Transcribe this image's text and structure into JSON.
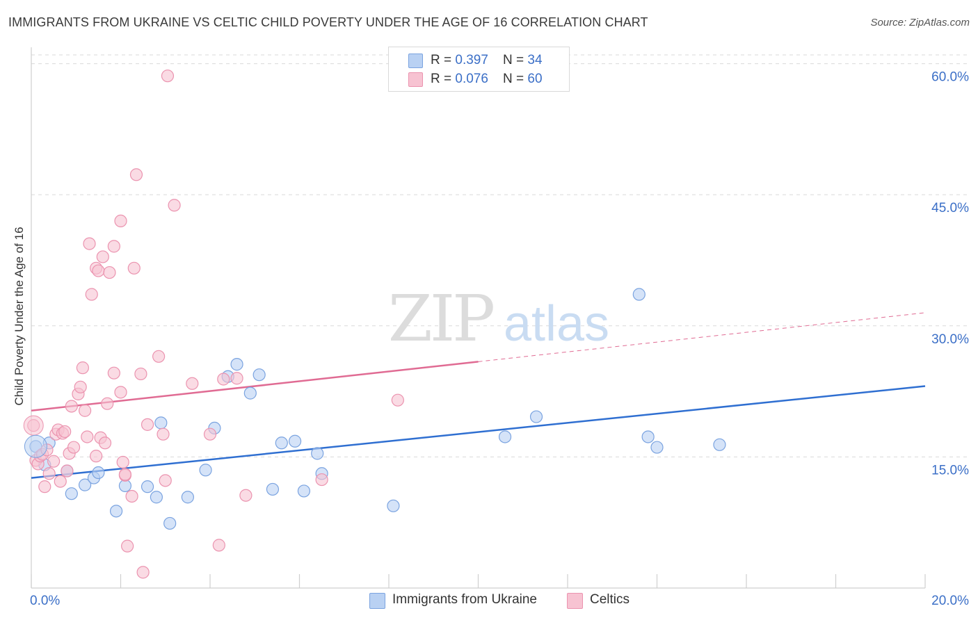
{
  "header": {
    "title": "IMMIGRANTS FROM UKRAINE VS CELTIC CHILD POVERTY UNDER THE AGE OF 16 CORRELATION CHART",
    "source": "Source: ZipAtlas.com"
  },
  "watermark": {
    "zip": "ZIP",
    "atlas": "atlas"
  },
  "legend_top": {
    "rows": [
      {
        "r_label": "R = ",
        "r_value": "0.397",
        "n_label": "N = ",
        "n_value": "34"
      },
      {
        "r_label": "R = ",
        "r_value": "0.076",
        "n_label": "N = ",
        "n_value": "60"
      }
    ]
  },
  "legend_bottom": {
    "items": [
      {
        "label": "Immigrants from Ukraine"
      },
      {
        "label": "Celtics"
      }
    ]
  },
  "colors": {
    "blue_fill": "#b9d1f3",
    "blue_stroke": "#7aa3e0",
    "blue_line": "#2f6fd1",
    "pink_fill": "#f7c3d2",
    "pink_stroke": "#eb93af",
    "pink_line": "#e06b93",
    "axis_text": "#3b6fc7",
    "grid": "#d9d9d9"
  },
  "chart_data": {
    "type": "scatter",
    "title": "IMMIGRANTS FROM UKRAINE VS CELTIC CHILD POVERTY UNDER THE AGE OF 16 CORRELATION CHART",
    "xlabel": "",
    "ylabel": "Child Poverty Under the Age of 16",
    "xlim": [
      0,
      20
    ],
    "ylim": [
      0,
      61
    ],
    "x_tick_labels": [
      "0.0%",
      "20.0%"
    ],
    "y_ticks": [
      15,
      30,
      45,
      60
    ],
    "y_tick_labels": [
      "15.0%",
      "30.0%",
      "45.0%",
      "60.0%"
    ],
    "grid": true,
    "legend_placement": "top-center",
    "series": [
      {
        "name": "Immigrants from Ukraine",
        "color": "#b9d1f3",
        "points": [
          [
            0.1,
            16.2
          ],
          [
            0.4,
            16.6
          ],
          [
            0.8,
            13.4
          ],
          [
            0.3,
            14.1
          ],
          [
            0.9,
            10.8
          ],
          [
            1.2,
            11.8
          ],
          [
            1.4,
            12.6
          ],
          [
            2.1,
            11.7
          ],
          [
            1.9,
            8.8
          ],
          [
            2.6,
            11.6
          ],
          [
            2.8,
            10.4
          ],
          [
            3.5,
            10.4
          ],
          [
            3.9,
            13.5
          ],
          [
            4.1,
            18.3
          ],
          [
            4.4,
            24.2
          ],
          [
            4.6,
            25.6
          ],
          [
            4.9,
            22.3
          ],
          [
            5.1,
            24.4
          ],
          [
            5.4,
            11.3
          ],
          [
            5.6,
            16.6
          ],
          [
            5.9,
            16.8
          ],
          [
            6.1,
            11.1
          ],
          [
            6.4,
            15.4
          ],
          [
            6.5,
            13.1
          ],
          [
            8.1,
            9.4
          ],
          [
            10.6,
            17.3
          ],
          [
            11.3,
            19.6
          ],
          [
            13.6,
            33.6
          ],
          [
            13.8,
            17.3
          ],
          [
            14.0,
            16.1
          ],
          [
            15.4,
            16.4
          ],
          [
            2.9,
            18.9
          ],
          [
            1.5,
            13.2
          ],
          [
            3.1,
            7.4
          ]
        ]
      },
      {
        "name": "Celtics",
        "color": "#f7c3d2",
        "points": [
          [
            0.05,
            18.6
          ],
          [
            0.1,
            14.6
          ],
          [
            0.15,
            14.2
          ],
          [
            0.2,
            15.1
          ],
          [
            0.25,
            15.3
          ],
          [
            0.3,
            11.6
          ],
          [
            0.35,
            15.8
          ],
          [
            0.4,
            13.1
          ],
          [
            0.5,
            14.5
          ],
          [
            0.55,
            17.6
          ],
          [
            0.6,
            18.1
          ],
          [
            0.65,
            12.2
          ],
          [
            0.7,
            17.7
          ],
          [
            0.75,
            17.9
          ],
          [
            0.8,
            13.4
          ],
          [
            0.85,
            15.4
          ],
          [
            0.9,
            20.8
          ],
          [
            0.95,
            16.1
          ],
          [
            1.05,
            22.2
          ],
          [
            1.1,
            23.0
          ],
          [
            1.15,
            25.2
          ],
          [
            1.2,
            20.3
          ],
          [
            1.25,
            17.3
          ],
          [
            1.3,
            39.4
          ],
          [
            1.35,
            33.6
          ],
          [
            1.45,
            15.1
          ],
          [
            1.45,
            36.6
          ],
          [
            1.5,
            36.3
          ],
          [
            1.55,
            17.2
          ],
          [
            1.6,
            37.9
          ],
          [
            1.65,
            16.6
          ],
          [
            1.7,
            21.1
          ],
          [
            1.75,
            36.1
          ],
          [
            1.85,
            24.6
          ],
          [
            1.85,
            39.1
          ],
          [
            2.0,
            42.0
          ],
          [
            2.0,
            22.4
          ],
          [
            2.05,
            14.4
          ],
          [
            2.1,
            12.9
          ],
          [
            2.15,
            4.8
          ],
          [
            2.25,
            10.5
          ],
          [
            2.3,
            36.6
          ],
          [
            2.35,
            47.3
          ],
          [
            2.45,
            24.5
          ],
          [
            2.5,
            1.8
          ],
          [
            2.6,
            18.7
          ],
          [
            2.85,
            26.5
          ],
          [
            2.95,
            17.6
          ],
          [
            3.0,
            12.3
          ],
          [
            3.05,
            58.6
          ],
          [
            3.2,
            43.8
          ],
          [
            3.6,
            23.4
          ],
          [
            4.0,
            17.6
          ],
          [
            4.2,
            4.9
          ],
          [
            4.3,
            23.9
          ],
          [
            4.6,
            24.0
          ],
          [
            4.8,
            10.6
          ],
          [
            6.5,
            12.4
          ],
          [
            8.2,
            21.5
          ],
          [
            2.1,
            13.0
          ]
        ]
      }
    ],
    "trendlines": [
      {
        "series": "Immigrants from Ukraine",
        "x": [
          0,
          20
        ],
        "y": [
          12.6,
          23.1
        ],
        "style": "solid"
      },
      {
        "series": "Celtics",
        "x": [
          0,
          10
        ],
        "y": [
          20.3,
          25.9
        ],
        "style": "solid"
      },
      {
        "series": "Celtics",
        "x": [
          10,
          20
        ],
        "y": [
          25.9,
          31.5
        ],
        "style": "dashed"
      }
    ]
  }
}
